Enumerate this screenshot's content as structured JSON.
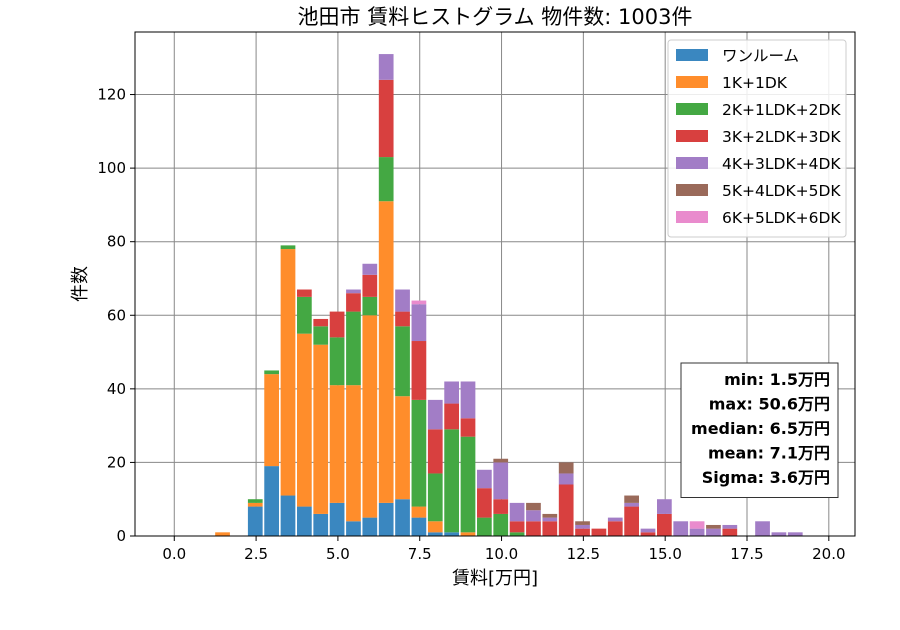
{
  "chart_data": {
    "type": "bar",
    "stacked": true,
    "title": "池田市 賃料ヒストグラム  物件数: 1003件",
    "xlabel": "賃料[万円]",
    "ylabel": "件数",
    "xlim": [
      -1.2,
      20.8
    ],
    "ylim": [
      0,
      137
    ],
    "xticks": [
      0.0,
      2.5,
      5.0,
      7.5,
      10.0,
      12.5,
      15.0,
      17.5,
      20.0
    ],
    "xtick_labels": [
      "0.0",
      "2.5",
      "5.0",
      "7.5",
      "10.0",
      "12.5",
      "15.0",
      "17.5",
      "20.0"
    ],
    "yticks": [
      0,
      20,
      40,
      60,
      80,
      100,
      120
    ],
    "ytick_labels": [
      "0",
      "20",
      "40",
      "60",
      "80",
      "100",
      "120"
    ],
    "bin_width": 0.5,
    "grid": true,
    "legend_position": "top-right",
    "bin_starts": [
      1.25,
      2.25,
      2.75,
      3.25,
      3.75,
      4.25,
      4.75,
      5.25,
      5.75,
      6.25,
      6.75,
      7.25,
      7.75,
      8.25,
      8.75,
      9.25,
      9.75,
      10.25,
      10.75,
      11.25,
      11.75,
      12.25,
      12.75,
      13.25,
      13.75,
      14.25,
      14.75,
      15.25,
      15.75,
      16.25,
      16.75,
      17.75,
      18.25,
      18.75
    ],
    "series": [
      {
        "name": "ワンルーム",
        "color": "#3a87c0",
        "values": [
          0,
          8,
          19,
          11,
          8,
          6,
          9,
          4,
          5,
          9,
          10,
          5,
          1,
          1,
          0,
          0,
          0,
          0,
          0,
          0,
          0,
          0,
          0,
          0,
          0,
          0,
          0,
          0,
          0,
          0,
          0,
          0,
          0,
          0
        ]
      },
      {
        "name": "1K+1DK",
        "color": "#ff8d2b",
        "values": [
          1,
          1,
          25,
          67,
          47,
          46,
          32,
          37,
          55,
          82,
          28,
          3,
          3,
          0,
          1,
          0,
          0,
          0,
          0,
          0,
          0,
          0,
          0,
          0,
          0,
          0,
          0,
          0,
          0,
          0,
          0,
          0,
          0,
          0
        ]
      },
      {
        "name": "2K+1LDK+2DK",
        "color": "#44a843",
        "values": [
          0,
          1,
          1,
          1,
          10,
          5,
          13,
          20,
          5,
          12,
          19,
          29,
          13,
          28,
          26,
          5,
          6,
          1,
          0,
          0,
          0,
          0,
          0,
          0,
          0,
          0,
          0,
          0,
          0,
          0,
          0,
          0,
          0,
          0
        ]
      },
      {
        "name": "3K+2LDK+3DK",
        "color": "#d8403f",
        "values": [
          0,
          0,
          0,
          0,
          2,
          2,
          7,
          5,
          6,
          21,
          4,
          16,
          12,
          7,
          5,
          8,
          4,
          3,
          4,
          4,
          14,
          2,
          2,
          4,
          8,
          1,
          6,
          0,
          0,
          0,
          2,
          0,
          0,
          0
        ]
      },
      {
        "name": "4K+3LDK+4DK",
        "color": "#a27dc6",
        "values": [
          0,
          0,
          0,
          0,
          0,
          0,
          0,
          1,
          3,
          7,
          6,
          10,
          8,
          6,
          10,
          5,
          10,
          5,
          3,
          1,
          3,
          1,
          0,
          1,
          1,
          1,
          4,
          4,
          2,
          2,
          1,
          4,
          1,
          1
        ]
      },
      {
        "name": "5K+4LDK+5DK",
        "color": "#9a6a5a",
        "values": [
          0,
          0,
          0,
          0,
          0,
          0,
          0,
          0,
          0,
          0,
          0,
          0,
          0,
          0,
          0,
          0,
          1,
          0,
          2,
          1,
          3,
          1,
          0,
          0,
          2,
          0,
          0,
          0,
          0,
          1,
          0,
          0,
          0,
          0
        ]
      },
      {
        "name": "6K+5LDK+6DK",
        "color": "#e98bcd",
        "values": [
          0,
          0,
          0,
          0,
          0,
          0,
          0,
          0,
          0,
          0,
          0,
          1,
          0,
          0,
          0,
          0,
          0,
          0,
          0,
          0,
          0,
          0,
          0,
          0,
          0,
          0,
          0,
          0,
          2,
          0,
          0,
          0,
          0,
          0
        ]
      }
    ],
    "stats": [
      "min: 1.5万円",
      "max: 50.6万円",
      "median: 6.5万円",
      "mean: 7.1万円",
      "Sigma: 3.6万円"
    ]
  }
}
